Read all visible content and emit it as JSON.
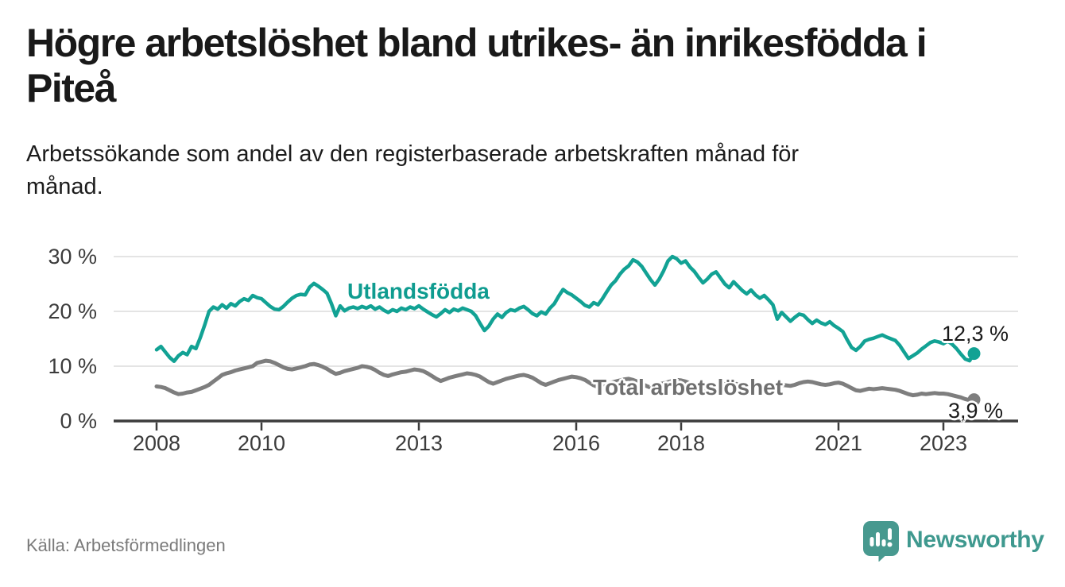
{
  "header": {
    "title_lines": [
      "Högre arbetslöshet bland utrikes- än inrikesfödda i",
      "Piteå"
    ],
    "subtitle_lines": [
      "Arbetssökande som andel av den registerbaserade arbetskraften månad för",
      "månad."
    ]
  },
  "footer": {
    "source": "Källa: Arbetsförmedlingen",
    "brand": "Newsworthy"
  },
  "colors": {
    "line_teal": "#12a294",
    "label_teal": "#0f9c90",
    "line_gray": "#7e7e7e",
    "label_gray": "#6f6f6f",
    "axis": "#3c3c3c",
    "grid": "#dcdcdc",
    "brand_teal": "#47998f"
  },
  "chart_data": {
    "type": "line",
    "frequency": "monthly",
    "x_start_year": 2008,
    "x_start_month": 1,
    "x_end_year": 2023,
    "x_end_month": 8,
    "ylim": [
      0,
      32
    ],
    "grid": true,
    "unit": "%",
    "y_ticks": [
      {
        "value": 0,
        "label": "0 %"
      },
      {
        "value": 10,
        "label": "10 %"
      },
      {
        "value": 20,
        "label": "20 %"
      },
      {
        "value": 30,
        "label": "30 %"
      }
    ],
    "x_ticks": [
      {
        "year": 2008,
        "label": "2008"
      },
      {
        "year": 2010,
        "label": "2010"
      },
      {
        "year": 2013,
        "label": "2013"
      },
      {
        "year": 2016,
        "label": "2016"
      },
      {
        "year": 2018,
        "label": "2018"
      },
      {
        "year": 2021,
        "label": "2021"
      },
      {
        "year": 2023,
        "label": "2023"
      }
    ],
    "series": [
      {
        "name": "Utlandsfödda",
        "color": "#12a294",
        "end_label": "12,3 %",
        "values": [
          13.0,
          13.6,
          12.6,
          11.6,
          10.9,
          11.9,
          12.5,
          12.1,
          13.6,
          13.2,
          15.2,
          17.5,
          20.0,
          20.8,
          20.4,
          21.2,
          20.6,
          21.4,
          21.0,
          21.8,
          22.3,
          22.0,
          22.9,
          22.5,
          22.3,
          21.6,
          20.9,
          20.4,
          20.3,
          20.9,
          21.7,
          22.4,
          22.9,
          23.1,
          23.0,
          24.4,
          25.1,
          24.6,
          24.0,
          23.3,
          21.4,
          19.2,
          21.0,
          20.1,
          20.6,
          20.8,
          20.5,
          20.9,
          20.6,
          21.0,
          20.4,
          20.8,
          20.2,
          19.8,
          20.3,
          20.0,
          20.6,
          20.3,
          20.8,
          20.5,
          21.0,
          20.4,
          19.9,
          19.4,
          19.0,
          19.6,
          20.3,
          19.8,
          20.4,
          20.1,
          20.6,
          20.3,
          20.0,
          19.2,
          17.8,
          16.5,
          17.3,
          18.6,
          19.5,
          18.9,
          19.8,
          20.3,
          20.1,
          20.6,
          20.9,
          20.3,
          19.6,
          19.2,
          19.9,
          19.5,
          20.6,
          21.4,
          22.8,
          24.0,
          23.4,
          23.0,
          22.4,
          21.8,
          21.1,
          20.8,
          21.6,
          21.2,
          22.3,
          23.6,
          24.8,
          25.6,
          26.8,
          27.7,
          28.3,
          29.4,
          29.0,
          28.2,
          27.0,
          25.8,
          24.8,
          25.9,
          27.4,
          29.2,
          30.0,
          29.6,
          28.8,
          29.2,
          28.1,
          27.3,
          26.2,
          25.2,
          25.9,
          26.8,
          27.2,
          26.1,
          25.0,
          24.3,
          25.4,
          24.6,
          23.8,
          23.2,
          23.9,
          23.0,
          22.4,
          22.9,
          22.1,
          21.2,
          18.6,
          19.8,
          19.0,
          18.2,
          18.9,
          19.5,
          19.3,
          18.5,
          17.8,
          18.4,
          17.9,
          17.6,
          18.1,
          17.4,
          16.9,
          16.3,
          14.8,
          13.4,
          12.9,
          13.6,
          14.6,
          14.9,
          15.1,
          15.4,
          15.7,
          15.3,
          15.0,
          14.7,
          13.8,
          12.6,
          11.4,
          11.9,
          12.4,
          13.1,
          13.7,
          14.3,
          14.6,
          14.4,
          14.1,
          14.6,
          14.0,
          13.2,
          12.2,
          11.3,
          11.0,
          12.3
        ]
      },
      {
        "name": "Total arbetslöshet",
        "color": "#7e7e7e",
        "end_label": "3,9 %",
        "values": [
          6.3,
          6.2,
          6.0,
          5.6,
          5.2,
          4.9,
          5.0,
          5.2,
          5.3,
          5.6,
          5.9,
          6.2,
          6.6,
          7.2,
          7.8,
          8.4,
          8.7,
          8.9,
          9.2,
          9.4,
          9.6,
          9.8,
          10.0,
          10.6,
          10.8,
          11.0,
          10.9,
          10.6,
          10.2,
          9.8,
          9.5,
          9.4,
          9.6,
          9.8,
          10.0,
          10.3,
          10.4,
          10.2,
          9.9,
          9.5,
          9.0,
          8.6,
          8.8,
          9.1,
          9.3,
          9.5,
          9.7,
          10.0,
          9.9,
          9.7,
          9.3,
          8.8,
          8.4,
          8.2,
          8.5,
          8.7,
          8.9,
          9.0,
          9.2,
          9.4,
          9.3,
          9.1,
          8.7,
          8.2,
          7.7,
          7.3,
          7.6,
          7.9,
          8.1,
          8.3,
          8.5,
          8.7,
          8.6,
          8.4,
          8.1,
          7.6,
          7.1,
          6.8,
          7.1,
          7.4,
          7.7,
          7.9,
          8.1,
          8.3,
          8.4,
          8.2,
          7.9,
          7.4,
          6.9,
          6.6,
          6.9,
          7.2,
          7.5,
          7.7,
          7.9,
          8.1,
          8.0,
          7.8,
          7.5,
          7.0,
          6.5,
          6.2,
          6.5,
          6.8,
          7.0,
          7.2,
          7.4,
          7.6,
          7.7,
          7.5,
          7.2,
          6.8,
          6.4,
          6.1,
          6.4,
          6.7,
          6.9,
          7.1,
          7.3,
          7.5,
          7.4,
          7.2,
          6.9,
          6.5,
          6.1,
          5.8,
          6.0,
          6.3,
          6.5,
          6.6,
          6.8,
          7.0,
          6.9,
          6.7,
          6.4,
          6.1,
          5.8,
          5.6,
          5.8,
          6.0,
          6.2,
          6.3,
          6.4,
          6.6,
          6.5,
          6.4,
          6.6,
          6.9,
          7.1,
          7.2,
          7.1,
          6.9,
          6.7,
          6.6,
          6.7,
          6.9,
          7.0,
          6.8,
          6.4,
          6.0,
          5.6,
          5.5,
          5.7,
          5.9,
          5.8,
          5.9,
          6.0,
          5.9,
          5.8,
          5.7,
          5.5,
          5.2,
          4.9,
          4.7,
          4.8,
          5.0,
          4.9,
          5.0,
          5.1,
          5.0,
          5.0,
          4.9,
          4.7,
          4.5,
          4.3,
          4.0,
          3.8,
          3.9
        ]
      }
    ]
  }
}
